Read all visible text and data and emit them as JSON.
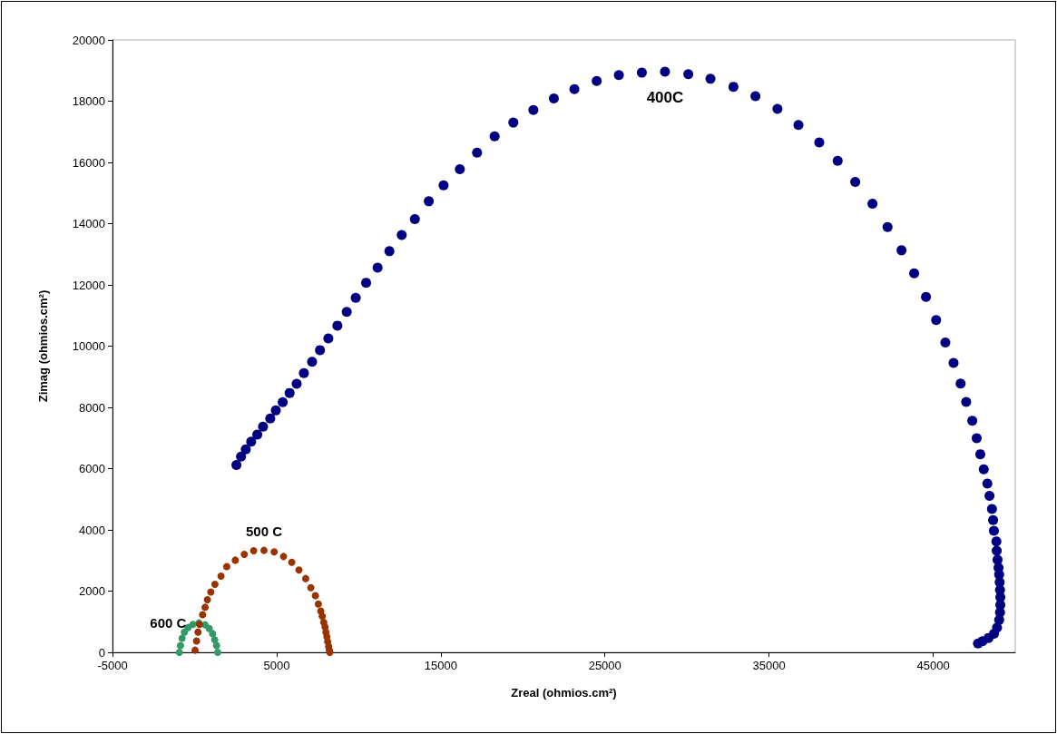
{
  "chart_data": {
    "type": "scatter",
    "xlabel": "Zreal (ohmios.cm²)",
    "ylabel": "Zimag (ohmios.cm²)",
    "xlim": [
      -5000,
      50000
    ],
    "xticks": [
      -5000,
      5000,
      15000,
      25000,
      35000,
      45000
    ],
    "ylim": [
      0,
      20000
    ],
    "yticks": [
      0,
      2000,
      4000,
      6000,
      8000,
      10000,
      12000,
      14000,
      16000,
      18000,
      20000
    ],
    "grid": false,
    "legend": false,
    "marker": "circle",
    "series": [
      {
        "name": "400C",
        "color": "#000080",
        "x": [
          2550,
          2830,
          3120,
          3450,
          3820,
          4170,
          4610,
          4950,
          5370,
          5790,
          6220,
          6660,
          7160,
          7640,
          8150,
          8700,
          9270,
          9820,
          10450,
          11150,
          11870,
          12620,
          13420,
          14270,
          15170,
          16160,
          17210,
          18280,
          19420,
          20640,
          21890,
          23140,
          24500,
          25850,
          27250,
          28660,
          30080,
          31430,
          32830,
          34170,
          35510,
          36790,
          38060,
          39180,
          40250,
          41300,
          42220,
          43070,
          43840,
          44560,
          45180,
          45740,
          46240,
          46670,
          47010,
          47380,
          47650,
          47870,
          48080,
          48300,
          48430,
          48580,
          48650,
          48700,
          48850,
          48870,
          48920,
          48980,
          49020,
          49050,
          49070,
          49090,
          49090,
          49070,
          49020,
          48890,
          48700,
          48370,
          48000,
          47730
        ],
        "values": [
          6120,
          6390,
          6630,
          6880,
          7110,
          7370,
          7640,
          7900,
          8170,
          8470,
          8770,
          9120,
          9490,
          9870,
          10250,
          10670,
          11120,
          11580,
          12070,
          12560,
          13100,
          13630,
          14150,
          14730,
          15250,
          15780,
          16320,
          16850,
          17300,
          17710,
          18090,
          18390,
          18660,
          18850,
          18930,
          18960,
          18880,
          18730,
          18470,
          18160,
          17750,
          17220,
          16650,
          16050,
          15360,
          14650,
          13890,
          13130,
          12380,
          11610,
          10850,
          10120,
          9450,
          8780,
          8180,
          7560,
          6990,
          6470,
          5980,
          5510,
          5110,
          4680,
          4320,
          3970,
          3620,
          3320,
          3020,
          2760,
          2540,
          2290,
          2040,
          1800,
          1550,
          1300,
          1060,
          810,
          610,
          470,
          360,
          290
        ]
      },
      {
        "name": "500 C",
        "color": "#993300",
        "x": [
          30,
          120,
          210,
          300,
          490,
          640,
          780,
          990,
          1240,
          1610,
          1960,
          2480,
          3030,
          3600,
          4230,
          4850,
          5420,
          5920,
          6360,
          6770,
          7080,
          7360,
          7540,
          7690,
          7780,
          7870,
          7950,
          8000,
          8060,
          8110,
          8170,
          8210,
          8240
        ],
        "values": [
          70,
          370,
          660,
          910,
          1230,
          1470,
          1720,
          1970,
          2220,
          2490,
          2800,
          3010,
          3200,
          3320,
          3330,
          3280,
          3130,
          2940,
          2690,
          2410,
          2110,
          1850,
          1580,
          1350,
          1180,
          980,
          830,
          660,
          510,
          350,
          190,
          70,
          0
        ]
      },
      {
        "name": "600 C",
        "color": "#339966",
        "x": [
          -930,
          -860,
          -760,
          -620,
          -400,
          -100,
          270,
          640,
          890,
          1100,
          1230,
          1340,
          1410
        ],
        "values": [
          0,
          220,
          460,
          660,
          810,
          910,
          960,
          900,
          780,
          610,
          410,
          220,
          0
        ]
      }
    ]
  }
}
